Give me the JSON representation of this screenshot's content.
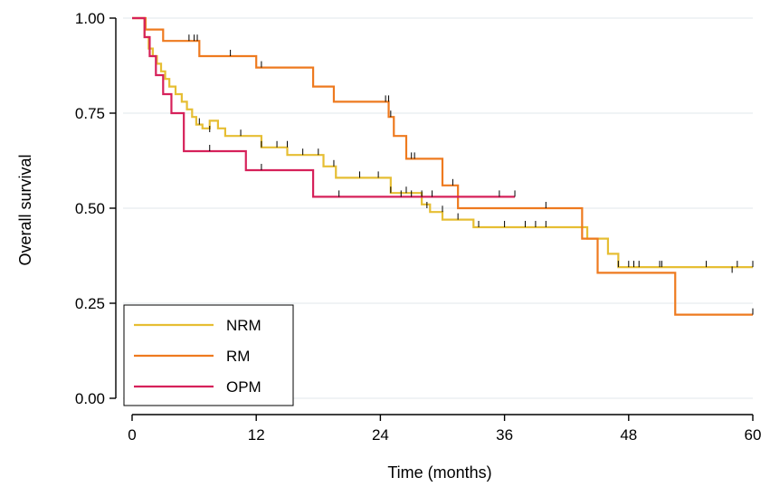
{
  "chart_data": {
    "type": "line",
    "subtype": "kaplan-meier step",
    "title": "",
    "xlabel": "Time (months)",
    "ylabel": "Overall survival",
    "xlim": [
      0,
      60
    ],
    "ylim": [
      0,
      1
    ],
    "x_ticks": [
      0,
      12,
      24,
      36,
      48,
      60
    ],
    "x_tick_labels": [
      "0",
      "12",
      "24",
      "36",
      "48",
      "60"
    ],
    "y_ticks": [
      0,
      0.25,
      0.5,
      0.75,
      1
    ],
    "y_tick_labels": [
      "0.00",
      "0.25",
      "0.50",
      "0.75",
      "1.00"
    ],
    "grid": "horizontal",
    "legend_position": "bottom-left",
    "series": [
      {
        "name": "NRM",
        "color": "#e6be33",
        "x": [
          0,
          1.2,
          1.6,
          2.0,
          2.4,
          2.8,
          3.2,
          3.6,
          4.2,
          4.8,
          5.3,
          5.8,
          6.2,
          6.8,
          7.5,
          8.3,
          9.0,
          10.0,
          12.5,
          15.0,
          18.5,
          19.7,
          25.0,
          27.0,
          28.0,
          28.8,
          30.0,
          31.0,
          33.0,
          44.0,
          46.0,
          47.0,
          60.0
        ],
        "y": [
          1.0,
          0.95,
          0.92,
          0.9,
          0.88,
          0.86,
          0.84,
          0.82,
          0.8,
          0.78,
          0.76,
          0.74,
          0.72,
          0.71,
          0.73,
          0.71,
          0.69,
          0.69,
          0.66,
          0.64,
          0.61,
          0.58,
          0.54,
          0.54,
          0.51,
          0.49,
          0.47,
          0.47,
          0.45,
          0.42,
          0.38,
          0.345,
          0.345
        ],
        "censor_x": [
          6.5,
          7.5,
          10.5,
          12.5,
          14.0,
          15.0,
          16.5,
          18.0,
          19.5,
          22.0,
          23.8,
          25.0,
          26.5,
          28.5,
          30.0,
          31.5,
          33.5,
          36.0,
          38.0,
          39.0,
          40.0,
          47.0,
          48.0,
          48.5,
          49.0,
          51.0,
          51.2,
          55.5,
          58.5,
          60.0
        ],
        "censor_y": [
          0.72,
          0.7,
          0.69,
          0.66,
          0.66,
          0.66,
          0.64,
          0.64,
          0.61,
          0.58,
          0.58,
          0.54,
          0.54,
          0.5,
          0.49,
          0.47,
          0.45,
          0.45,
          0.45,
          0.45,
          0.45,
          0.345,
          0.345,
          0.345,
          0.345,
          0.345,
          0.345,
          0.345,
          0.345,
          0.345
        ]
      },
      {
        "name": "RM",
        "color": "#ee7a1f",
        "x": [
          0,
          1.3,
          3.0,
          6.5,
          12.0,
          17.5,
          19.5,
          24.8,
          25.3,
          26.5,
          30.0,
          31.5,
          43.5,
          44.5,
          45.0,
          52.5,
          60.0
        ],
        "y": [
          1.0,
          0.97,
          0.94,
          0.9,
          0.87,
          0.82,
          0.78,
          0.74,
          0.69,
          0.63,
          0.56,
          0.5,
          0.42,
          0.42,
          0.33,
          0.22,
          0.22
        ],
        "censor_x": [
          5.5,
          6.0,
          6.3,
          9.5,
          12.5,
          24.5,
          24.8,
          25.0,
          27.0,
          27.3,
          31.0,
          40.0,
          58.0,
          60.0
        ],
        "censor_y": [
          0.94,
          0.94,
          0.94,
          0.9,
          0.87,
          0.78,
          0.78,
          0.74,
          0.63,
          0.63,
          0.56,
          0.5,
          0.33,
          0.22
        ]
      },
      {
        "name": "OPM",
        "color": "#d6215a",
        "x": [
          0,
          1.2,
          1.7,
          2.3,
          3.0,
          3.8,
          5.0,
          11.0,
          17.5,
          37.0
        ],
        "y": [
          1.0,
          0.95,
          0.9,
          0.85,
          0.8,
          0.75,
          0.65,
          0.6,
          0.53,
          0.53
        ],
        "censor_x": [
          7.5,
          12.5,
          20.0,
          26.0,
          27.0,
          28.0,
          29.0,
          35.5,
          37.0
        ],
        "censor_y": [
          0.65,
          0.6,
          0.53,
          0.53,
          0.53,
          0.53,
          0.53,
          0.53,
          0.53
        ]
      }
    ]
  }
}
